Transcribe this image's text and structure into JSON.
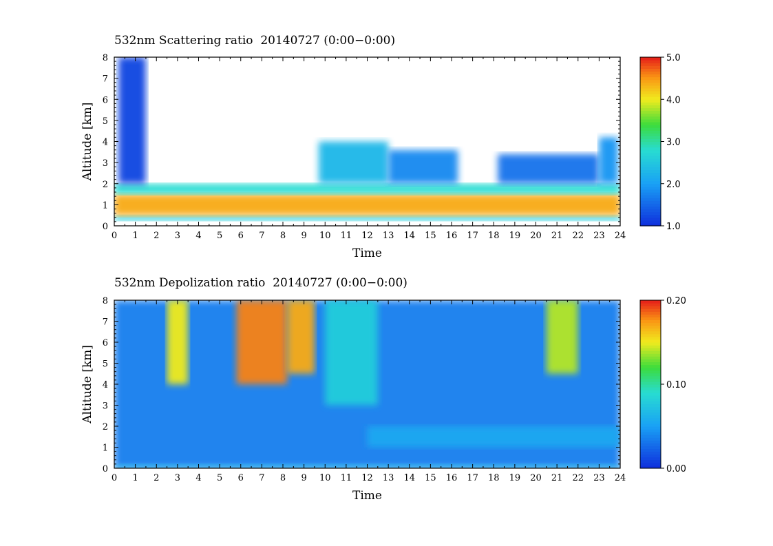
{
  "chart_data": [
    {
      "type": "heatmap",
      "title": "532nm Scattering ratio  20140727 (0:00−0:00)",
      "xlabel": "Time",
      "ylabel": "Altitude [km]",
      "xlim": [
        0,
        24
      ],
      "ylim": [
        0,
        8
      ],
      "x_ticks": [
        "0",
        "1",
        "2",
        "3",
        "4",
        "5",
        "6",
        "7",
        "8",
        "9",
        "10",
        "11",
        "12",
        "13",
        "14",
        "15",
        "16",
        "17",
        "18",
        "19",
        "20",
        "21",
        "22",
        "23",
        "24"
      ],
      "y_ticks": [
        "0",
        "1",
        "2",
        "3",
        "4",
        "5",
        "6",
        "7",
        "8"
      ],
      "colorbar": {
        "min": 1.0,
        "max": 5.0,
        "ticks": [
          "1.0",
          "2.0",
          "3.0",
          "4.0",
          "5.0"
        ]
      },
      "layers": [
        {
          "x0": 0.0,
          "x1": 24.0,
          "y0": 0.25,
          "y1": 0.5,
          "value": 2.6
        },
        {
          "x0": 0.0,
          "x1": 24.0,
          "y0": 0.5,
          "y1": 1.5,
          "value": 4.4
        },
        {
          "x0": 0.0,
          "x1": 24.0,
          "y0": 1.5,
          "y1": 2.0,
          "value": 2.8
        },
        {
          "x0": 0.2,
          "x1": 1.5,
          "y0": 2.0,
          "y1": 8.0,
          "value": 1.2
        },
        {
          "x0": 9.7,
          "x1": 13.0,
          "y0": 2.0,
          "y1": 4.0,
          "value": 2.3
        },
        {
          "x0": 13.0,
          "x1": 16.3,
          "y0": 2.0,
          "y1": 3.6,
          "value": 1.8
        },
        {
          "x0": 18.2,
          "x1": 23.0,
          "y0": 2.0,
          "y1": 3.4,
          "value": 1.6
        },
        {
          "x0": 23.0,
          "x1": 23.9,
          "y0": 2.0,
          "y1": 4.2,
          "value": 1.9
        }
      ]
    },
    {
      "type": "heatmap",
      "title": "532nm Depolization ratio  20140727 (0:00−0:00)",
      "xlabel": "Time",
      "ylabel": "Altitude [km]",
      "xlim": [
        0,
        24
      ],
      "ylim": [
        0,
        8
      ],
      "x_ticks": [
        "0",
        "1",
        "2",
        "3",
        "4",
        "5",
        "6",
        "7",
        "8",
        "9",
        "10",
        "11",
        "12",
        "13",
        "14",
        "15",
        "16",
        "17",
        "18",
        "19",
        "20",
        "21",
        "22",
        "23",
        "24"
      ],
      "y_ticks": [
        "0",
        "1",
        "2",
        "3",
        "4",
        "5",
        "6",
        "7",
        "8"
      ],
      "colorbar": {
        "min": 0.0,
        "max": 0.2,
        "ticks": [
          "0.00",
          "0.10",
          "0.20"
        ]
      },
      "layers": [
        {
          "x0": 0.0,
          "x1": 24.0,
          "y0": 0.0,
          "y1": 8.0,
          "value": 0.035
        },
        {
          "x0": 0.0,
          "x1": 24.0,
          "y0": 0.0,
          "y1": 0.2,
          "value": 0.06
        },
        {
          "x0": 12.0,
          "x1": 24.0,
          "y0": 1.0,
          "y1": 2.0,
          "value": 0.055
        },
        {
          "x0": 2.5,
          "x1": 3.5,
          "y0": 4.0,
          "y1": 8.0,
          "value": 0.15
        },
        {
          "x0": 5.8,
          "x1": 8.2,
          "y0": 4.0,
          "y1": 8.0,
          "value": 0.18
        },
        {
          "x0": 8.2,
          "x1": 9.5,
          "y0": 4.5,
          "y1": 8.0,
          "value": 0.17
        },
        {
          "x0": 10.0,
          "x1": 12.5,
          "y0": 3.0,
          "y1": 8.0,
          "value": 0.08
        },
        {
          "x0": 20.5,
          "x1": 22.0,
          "y0": 4.5,
          "y1": 8.0,
          "value": 0.14
        }
      ]
    }
  ]
}
